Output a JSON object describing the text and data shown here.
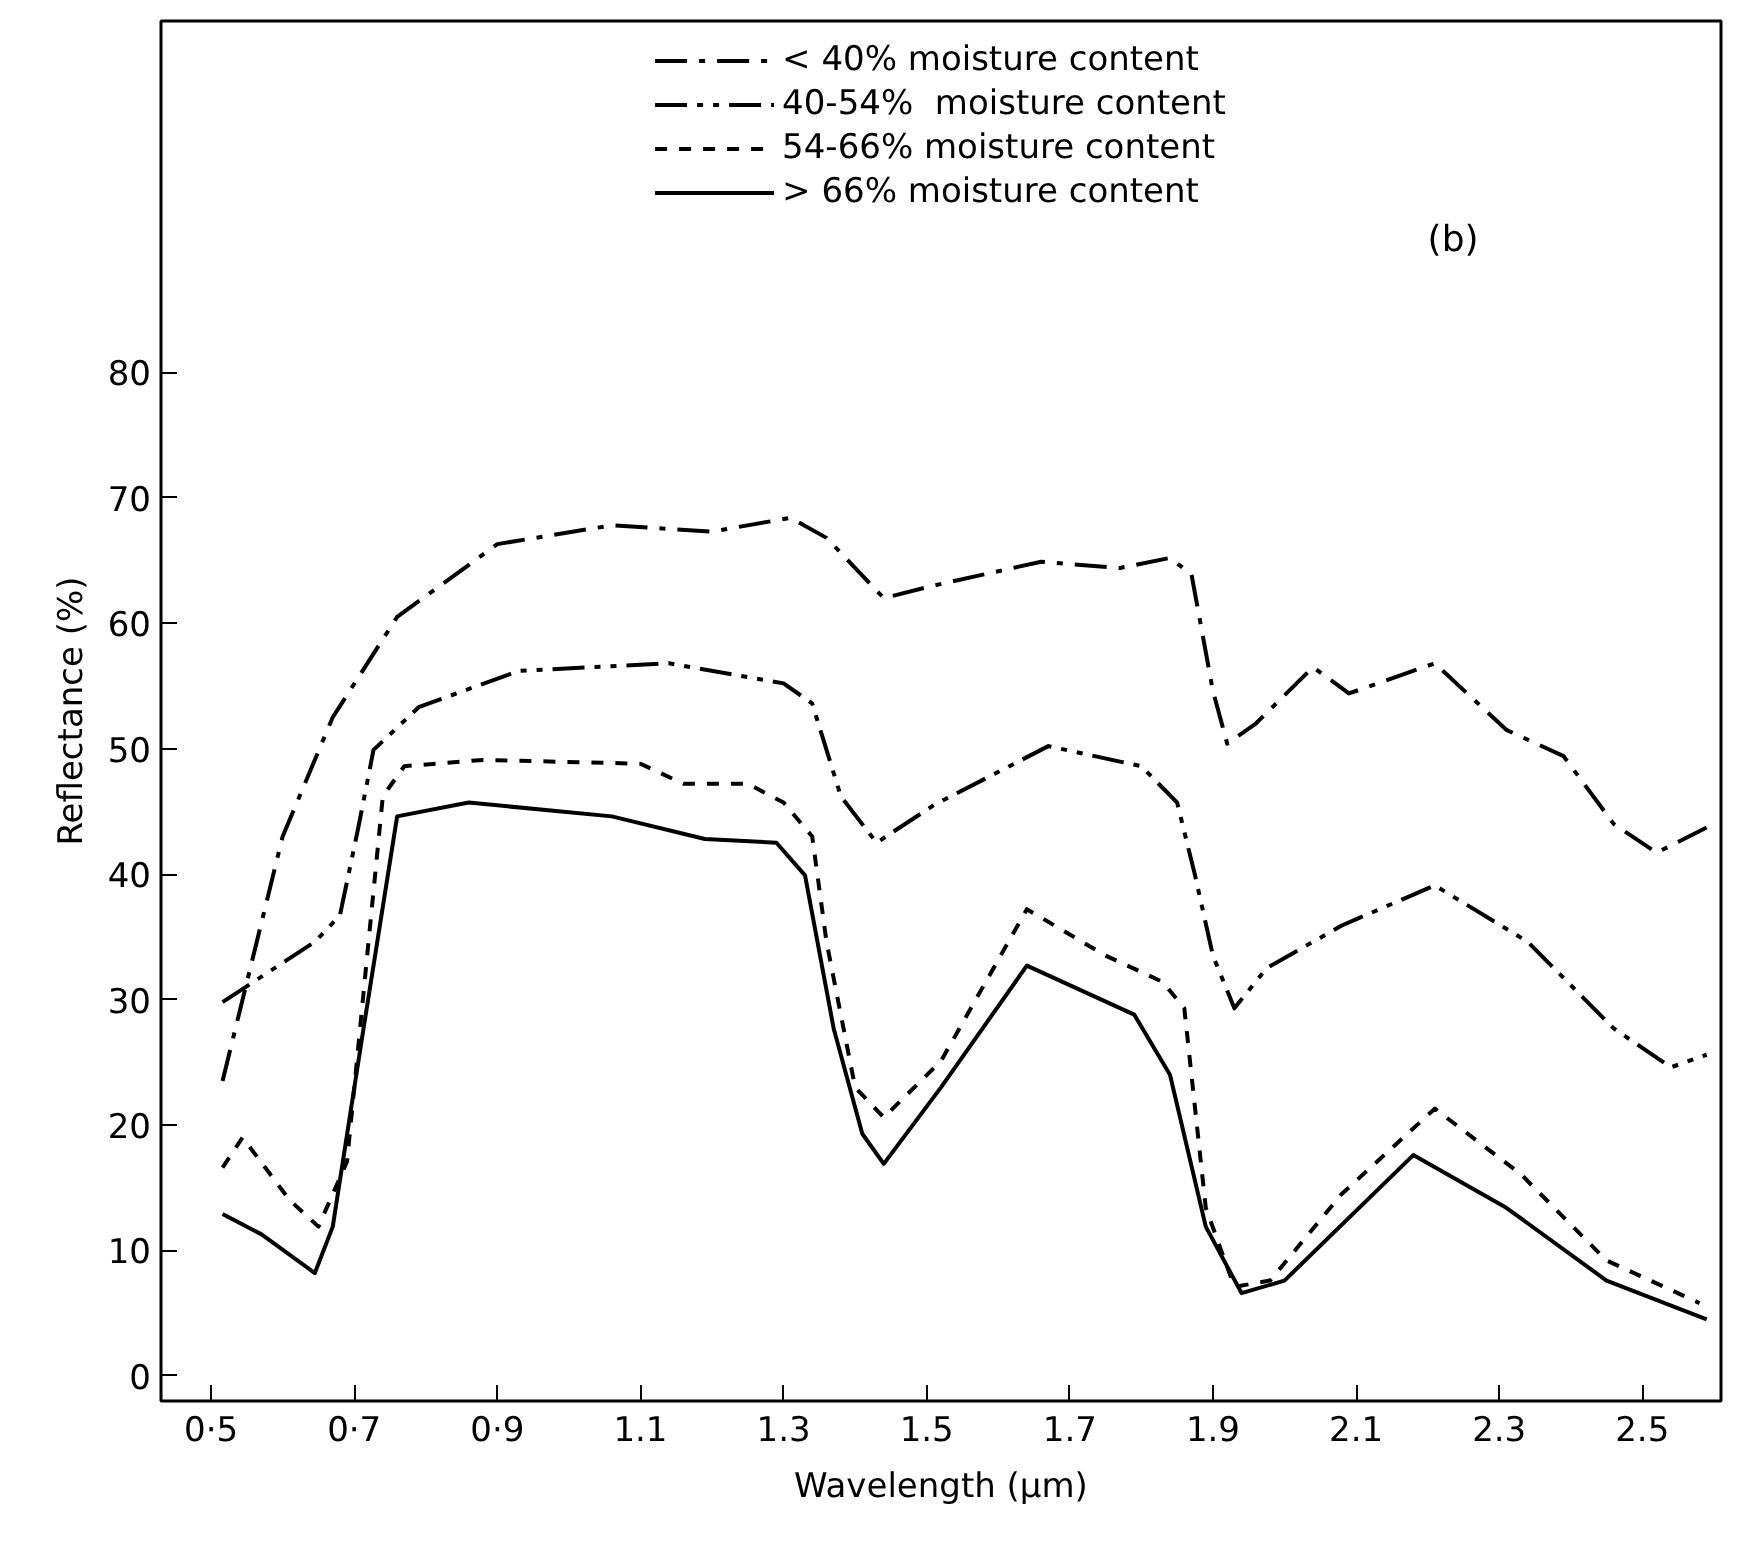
{
  "chart_data": {
    "type": "line",
    "xlabel": "Wavelength (μm)",
    "ylabel": "Reflectance (%)",
    "annotations": [
      "(b)"
    ],
    "xlim": [
      0.43,
      2.61
    ],
    "ylim": [
      -2,
      108
    ],
    "xticks": [
      {
        "value": 0.5,
        "label": "0·5"
      },
      {
        "value": 0.7,
        "label": "0·7"
      },
      {
        "value": 0.9,
        "label": "0·9"
      },
      {
        "value": 1.1,
        "label": "1.1"
      },
      {
        "value": 1.3,
        "label": "1.3"
      },
      {
        "value": 1.5,
        "label": "1.5"
      },
      {
        "value": 1.7,
        "label": "1.7"
      },
      {
        "value": 1.9,
        "label": "1.9"
      },
      {
        "value": 2.1,
        "label": "2.1"
      },
      {
        "value": 2.3,
        "label": "2.3"
      },
      {
        "value": 2.5,
        "label": "2.5"
      }
    ],
    "yticks": [
      0,
      10,
      20,
      30,
      40,
      50,
      60,
      70,
      80
    ],
    "grid": false,
    "legend": "top",
    "marker": "none",
    "series": [
      {
        "name": "< 40% moisture content",
        "color": "#000000",
        "line_style": "dashdot",
        "x": [
          0.516,
          0.6,
          0.67,
          0.76,
          0.9,
          1.06,
          1.2,
          1.31,
          1.36,
          1.44,
          1.51,
          1.66,
          1.77,
          1.84,
          1.87,
          1.9,
          1.92,
          1.96,
          2.04,
          2.09,
          2.21,
          2.31,
          2.39,
          2.46,
          2.52,
          2.6
        ],
        "values": [
          23.5,
          43,
          52.5,
          60.5,
          66.3,
          67.8,
          67.3,
          68.4,
          66.8,
          62,
          63,
          64.9,
          64.4,
          65.2,
          63.9,
          54.6,
          50.4,
          52,
          56.5,
          54.4,
          56.8,
          51.5,
          49.4,
          44,
          41.7,
          44
        ]
      },
      {
        "name": "40-54%  moisture content",
        "color": "#000000",
        "line_style": "dashdotdot",
        "x": [
          0.516,
          0.645,
          0.68,
          0.705,
          0.727,
          0.79,
          0.93,
          1.14,
          1.3,
          1.34,
          1.38,
          1.43,
          1.51,
          1.67,
          1.8,
          1.85,
          1.875,
          1.9,
          1.93,
          1.975,
          2.08,
          2.21,
          2.34,
          2.46,
          2.54,
          2.59
        ],
        "values": [
          29.8,
          34.6,
          36.7,
          43.5,
          49.9,
          53.3,
          56.2,
          56.8,
          55.2,
          53.6,
          46.2,
          42.5,
          45.5,
          50.2,
          48.6,
          45.7,
          39.9,
          33.5,
          29.3,
          32.5,
          35.9,
          39.1,
          34.6,
          27.7,
          24.6,
          25.6
        ]
      },
      {
        "name": "54-66% moisture content",
        "color": "#000000",
        "line_style": "dashed",
        "x": [
          0.516,
          0.544,
          0.61,
          0.65,
          0.69,
          0.72,
          0.74,
          0.77,
          0.88,
          1.1,
          1.16,
          1.25,
          1.3,
          1.34,
          1.36,
          1.4,
          1.44,
          1.52,
          1.64,
          1.75,
          1.83,
          1.86,
          1.89,
          1.93,
          1.98,
          2.08,
          2.21,
          2.33,
          2.45,
          2.58
        ],
        "values": [
          16.6,
          19,
          14,
          11.9,
          17.1,
          34.6,
          46.2,
          48.6,
          49.1,
          48.8,
          47.2,
          47.2,
          45.7,
          43,
          34.6,
          23,
          20.6,
          25.1,
          37.2,
          33.5,
          31.4,
          29.3,
          13.4,
          7.1,
          7.6,
          14.5,
          21.3,
          16.1,
          9.2,
          5.8
        ]
      },
      {
        "name": "> 66% moisture content",
        "color": "#000000",
        "line_style": "solid",
        "x": [
          0.516,
          0.57,
          0.645,
          0.67,
          0.71,
          0.76,
          0.86,
          1.06,
          1.19,
          1.29,
          1.33,
          1.37,
          1.41,
          1.44,
          1.52,
          1.64,
          1.79,
          1.84,
          1.89,
          1.94,
          2.0,
          2.18,
          2.31,
          2.45,
          2.59
        ],
        "values": [
          12.9,
          11.3,
          8.2,
          11.9,
          26.6,
          44.6,
          45.7,
          44.6,
          42.8,
          42.5,
          39.9,
          27.7,
          19.3,
          16.9,
          23,
          32.7,
          28.8,
          24,
          11.9,
          6.6,
          7.6,
          17.6,
          13.4,
          7.6,
          4.5
        ]
      }
    ]
  }
}
